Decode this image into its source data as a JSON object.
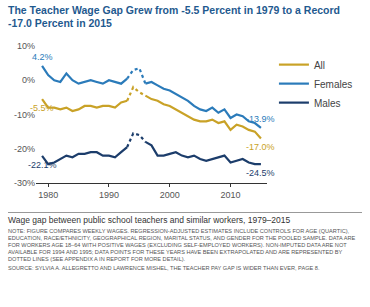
{
  "chart_data": {
    "type": "line",
    "title": "The Teacher Wage Gap Grew from -5.5 Percent in 1979 to a Record -17.0 Percent in 2015",
    "caption": "Wage gap between public school teachers and similar workers, 1979–2015",
    "note": "NOTE: FIGURE COMPARES WEEKLY WAGES. REGRESSION-ADJUSTED ESTIMATES INCLUDE CONTROLS FOR AGE (QUARTIC), EDUCATION, RACE/ETHNICITY, GEOGRAPHICAL REGION, MARITAL STATUS, AND GENDER FOR THE POOLED SAMPLE. DATA ARE FOR WORKERS AGE 18–64 WITH POSITIVE WAGES (EXCLUDING SELF-EMPLOYED WORKERS). NON-IMPUTED DATA ARE NOT AVAILABLE FOR 1994 AND 1995; DATA POINTS FOR THESE YEARS HAVE BEEN EXTRAPOLATED AND ARE REPRESENTED BY DOTTED LINES (SEE APPENDIX A IN REPORT FOR MORE DETAIL).",
    "source": "SOURCE: SYLVIA A. ALLEGRETTO AND LAWRENCE MISHEL, THE TEACHER PAY GAP IS WIDER THAN EVER, PAGE 8.",
    "x": [
      1979,
      1980,
      1981,
      1982,
      1983,
      1984,
      1985,
      1986,
      1987,
      1988,
      1989,
      1990,
      1991,
      1992,
      1993,
      1994,
      1995,
      1996,
      1997,
      1998,
      1999,
      2000,
      2001,
      2002,
      2003,
      2004,
      2005,
      2006,
      2007,
      2008,
      2009,
      2010,
      2011,
      2012,
      2013,
      2014,
      2015
    ],
    "xlim": [
      1978,
      2016
    ],
    "xticks": [
      1980,
      1990,
      2000,
      2010
    ],
    "ylim": [
      -30,
      10
    ],
    "yticks": [
      {
        "value": 10,
        "label": "10%"
      },
      {
        "value": 0,
        "label": "0%"
      },
      {
        "value": -10,
        "label": "-10%"
      },
      {
        "value": -20,
        "label": "-20%"
      },
      {
        "value": -30,
        "label": "-30%"
      }
    ],
    "grid": false,
    "legend": "right",
    "series": [
      {
        "name": "All",
        "color": "#c9a227",
        "line_style": "solid",
        "values": [
          -5.5,
          -8,
          -8,
          -8.5,
          -8,
          -9,
          -8.5,
          -7.5,
          -7.5,
          -8,
          -7.5,
          -7.5,
          -8,
          -6.5,
          -6,
          null,
          null,
          -4.5,
          -5.5,
          -6,
          -7,
          -7.5,
          -8.5,
          -9.5,
          -10.5,
          -11.5,
          -12,
          -12,
          -11.5,
          -12.5,
          -12,
          -14.5,
          -13,
          -13.5,
          -14.5,
          -15,
          -17.0
        ],
        "value_labels": [
          "-5.5%",
          null,
          null,
          null,
          null,
          null,
          null,
          null,
          null,
          null,
          null,
          null,
          null,
          null,
          null,
          null,
          null,
          null,
          null,
          null,
          null,
          null,
          null,
          null,
          null,
          null,
          null,
          null,
          null,
          null,
          null,
          null,
          null,
          null,
          null,
          null,
          "-17.0%"
        ]
      },
      {
        "name": "Females",
        "color": "#2b7bba",
        "line_style": "solid",
        "values": [
          4.2,
          1.5,
          0,
          -0.5,
          2,
          0,
          -1,
          -0.5,
          0,
          -0.5,
          -1,
          0,
          -0.5,
          -1,
          0.5,
          null,
          null,
          -1,
          -0.5,
          -1.5,
          -2.5,
          -3,
          -4,
          -5,
          -6,
          -7.5,
          -8.5,
          -9,
          -8,
          -9.5,
          -8.5,
          -11,
          -10,
          -10.5,
          -12,
          -12.5,
          -13.9
        ],
        "value_labels": [
          "4.2%",
          null,
          null,
          null,
          null,
          null,
          null,
          null,
          null,
          null,
          null,
          null,
          null,
          null,
          null,
          null,
          null,
          null,
          null,
          null,
          null,
          null,
          null,
          null,
          null,
          null,
          null,
          null,
          null,
          null,
          null,
          null,
          null,
          null,
          null,
          null,
          "-13.9%"
        ]
      },
      {
        "name": "Males",
        "color": "#1c3d6b",
        "line_style": "solid",
        "values": [
          -22.1,
          -24.5,
          -24,
          -23,
          -22,
          -22.5,
          -21.5,
          -21.5,
          -21,
          -21,
          -22,
          -22,
          -22.5,
          -21,
          -19.5,
          null,
          null,
          -18,
          -19,
          -22,
          -22,
          -21.5,
          -21,
          -22,
          -22.5,
          -22,
          -23,
          -23.5,
          -23,
          -22.5,
          -22,
          -24,
          -23.5,
          -23,
          -24,
          -24.5,
          -24.5
        ],
        "value_labels": [
          "-22.1%",
          null,
          null,
          null,
          null,
          null,
          null,
          null,
          null,
          null,
          null,
          null,
          null,
          null,
          null,
          null,
          null,
          null,
          null,
          null,
          null,
          null,
          null,
          null,
          null,
          null,
          null,
          null,
          null,
          null,
          null,
          null,
          null,
          null,
          null,
          null,
          "-24.5%"
        ]
      },
      {
        "name": "All",
        "color": "#c9a227",
        "line_style": "dot",
        "values": [
          null,
          null,
          null,
          null,
          null,
          null,
          null,
          null,
          null,
          null,
          null,
          null,
          null,
          null,
          -6,
          -2,
          -3.5,
          -4.5,
          null,
          null,
          null,
          null,
          null,
          null,
          null,
          null,
          null,
          null,
          null,
          null,
          null,
          null,
          null,
          null,
          null,
          null,
          null
        ]
      },
      {
        "name": "Females",
        "color": "#2b7bba",
        "line_style": "dot",
        "values": [
          null,
          null,
          null,
          null,
          null,
          null,
          null,
          null,
          null,
          null,
          null,
          null,
          null,
          null,
          0.5,
          3,
          3.5,
          -1,
          null,
          null,
          null,
          null,
          null,
          null,
          null,
          null,
          null,
          null,
          null,
          null,
          null,
          null,
          null,
          null,
          null,
          null,
          null
        ]
      },
      {
        "name": "Males",
        "color": "#1c3d6b",
        "line_style": "dot",
        "values": [
          null,
          null,
          null,
          null,
          null,
          null,
          null,
          null,
          null,
          null,
          null,
          null,
          null,
          null,
          -19.5,
          -15.5,
          -16,
          -18,
          null,
          null,
          null,
          null,
          null,
          null,
          null,
          null,
          null,
          null,
          null,
          null,
          null,
          null,
          null,
          null,
          null,
          null,
          null
        ]
      }
    ]
  }
}
